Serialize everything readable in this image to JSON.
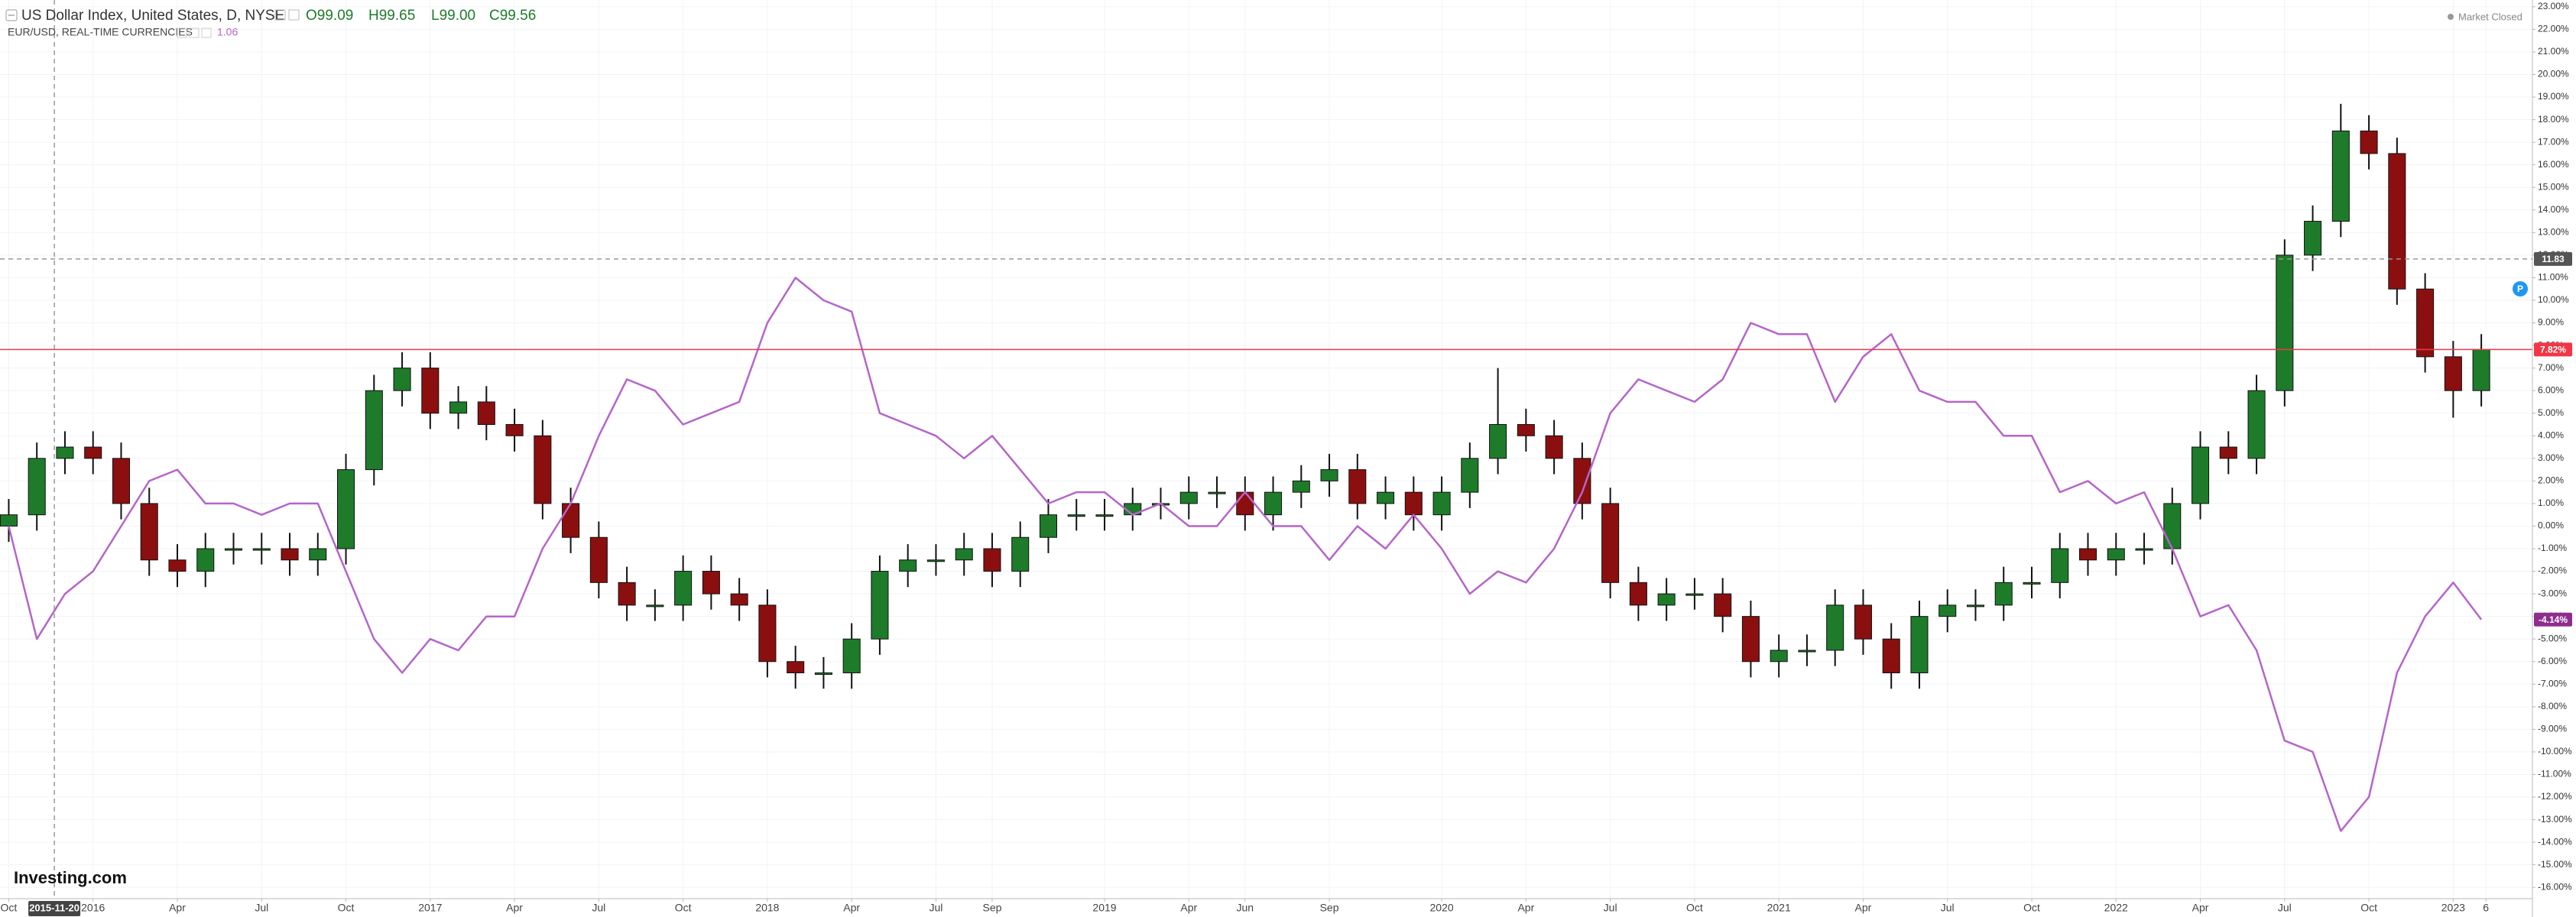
{
  "header": {
    "series_name": "US Dollar Index, United States, D, NYSE",
    "open": "O99.09",
    "high": "H99.65",
    "low": "L99.00",
    "close": "C99.56",
    "eur_value": "1.06",
    "market_status": "Market Closed",
    "logo": "Investing.com"
  },
  "chart_data": {
    "type": "candlestick",
    "x": [
      "2015-10",
      "2015-11",
      "2015-12",
      "2016-01",
      "2016-02",
      "2016-03",
      "2016-04",
      "2016-05",
      "2016-06",
      "2016-07",
      "2016-08",
      "2016-09",
      "2016-10",
      "2016-11",
      "2016-12",
      "2017-01",
      "2017-02",
      "2017-03",
      "2017-04",
      "2017-05",
      "2017-06",
      "2017-07",
      "2017-08",
      "2017-09",
      "2017-10",
      "2017-11",
      "2017-12",
      "2018-01",
      "2018-02",
      "2018-03",
      "2018-04",
      "2018-05",
      "2018-06",
      "2018-07",
      "2018-08",
      "2018-09",
      "2018-10",
      "2018-11",
      "2018-12",
      "2019-01",
      "2019-02",
      "2019-03",
      "2019-04",
      "2019-05",
      "2019-06",
      "2019-07",
      "2019-08",
      "2019-09",
      "2019-10",
      "2019-11",
      "2019-12",
      "2020-01",
      "2020-02",
      "2020-03",
      "2020-04",
      "2020-05",
      "2020-06",
      "2020-07",
      "2020-08",
      "2020-09",
      "2020-10",
      "2020-11",
      "2020-12",
      "2021-01",
      "2021-02",
      "2021-03",
      "2021-04",
      "2021-05",
      "2021-06",
      "2021-07",
      "2021-08",
      "2021-09",
      "2021-10",
      "2021-11",
      "2021-12",
      "2022-01",
      "2022-02",
      "2022-03",
      "2022-04",
      "2022-05",
      "2022-06",
      "2022-07",
      "2022-08",
      "2022-09",
      "2022-10",
      "2022-11",
      "2022-12",
      "2023-01",
      "2023-02"
    ],
    "series": [
      {
        "name": "US Dollar Index, United States, D, NYSE",
        "type": "candlestick",
        "up_color": "#1e7b2a",
        "down_color": "#8b0f0f",
        "open": [
          0,
          0.5,
          3,
          3.5,
          3,
          1,
          -1.5,
          -2,
          -1,
          -1,
          -1,
          -1.5,
          -1,
          2.5,
          6,
          7,
          5,
          5.5,
          4.5,
          4,
          1,
          -0.5,
          -2.5,
          -3.5,
          -3.5,
          -2,
          -3,
          -3.5,
          -6,
          -6.5,
          -6.5,
          -5,
          -2,
          -1.5,
          -1.5,
          -1,
          -2,
          -0.5,
          0.5,
          0.5,
          0.5,
          1,
          1,
          1.5,
          1.5,
          0.5,
          1.5,
          2,
          2.5,
          1,
          1.5,
          0.5,
          1.5,
          3,
          4.5,
          4,
          3,
          1,
          -2.5,
          -3.5,
          -3,
          -3,
          -4,
          -6,
          -5.5,
          -5.5,
          -3.5,
          -5,
          -6.5,
          -4,
          -3.5,
          -3.5,
          -2.5,
          -2.5,
          -1,
          -1.5,
          -1,
          -1,
          1,
          3.5,
          3,
          6,
          12,
          13.5,
          17.5,
          16.5,
          10.5,
          7.5,
          6
        ],
        "high": [
          1.2,
          3.7,
          4.2,
          4.2,
          3.7,
          1.7,
          -0.8,
          -0.3,
          -0.3,
          -0.3,
          -0.3,
          -0.3,
          3.2,
          6.7,
          7.7,
          7.7,
          6.2,
          6.2,
          5.2,
          4.7,
          1.7,
          0.2,
          -1.8,
          -2.8,
          -1.3,
          -1.3,
          -2.3,
          -2.8,
          -5.3,
          -5.8,
          -4.3,
          -1.3,
          -0.8,
          -0.8,
          -0.3,
          -0.3,
          0.2,
          1.2,
          1.2,
          1.2,
          1.7,
          1.7,
          2.2,
          2.2,
          2.2,
          2.2,
          2.7,
          3.2,
          3.2,
          2.2,
          2.2,
          2.2,
          3.7,
          7.0,
          5.2,
          4.7,
          3.7,
          1.7,
          -1.8,
          -2.3,
          -2.3,
          -2.3,
          -3.3,
          -4.8,
          -4.8,
          -2.8,
          -2.8,
          -4.3,
          -3.3,
          -2.8,
          -2.8,
          -1.8,
          -1.8,
          -0.3,
          -0.3,
          -0.3,
          -0.3,
          1.7,
          4.2,
          4.2,
          6.7,
          12.7,
          14.2,
          18.7,
          18.2,
          17.2,
          11.2,
          8.2,
          8.5
        ],
        "low": [
          -0.7,
          -0.2,
          2.3,
          2.3,
          0.3,
          -2.2,
          -2.7,
          -2.7,
          -1.7,
          -1.7,
          -2.2,
          -2.2,
          -1.7,
          1.8,
          5.3,
          4.3,
          4.3,
          3.8,
          3.3,
          0.3,
          -1.2,
          -3.2,
          -4.2,
          -4.2,
          -4.2,
          -3.7,
          -4.2,
          -6.7,
          -7.2,
          -7.2,
          -7.2,
          -5.7,
          -2.7,
          -2.2,
          -2.2,
          -2.7,
          -2.7,
          -1.2,
          -0.2,
          -0.2,
          -0.2,
          0.3,
          0.3,
          0.8,
          -0.2,
          -0.2,
          0.8,
          1.3,
          0.3,
          0.3,
          -0.2,
          -0.2,
          0.8,
          2.3,
          3.3,
          2.3,
          0.3,
          -3.2,
          -4.2,
          -4.2,
          -3.7,
          -4.7,
          -6.7,
          -6.7,
          -6.2,
          -6.2,
          -5.7,
          -7.2,
          -7.2,
          -4.7,
          -4.2,
          -4.2,
          -3.2,
          -3.2,
          -2.2,
          -2.2,
          -1.7,
          -1.7,
          0.3,
          2.3,
          2.3,
          5.3,
          11.3,
          12.8,
          15.8,
          9.8,
          6.8,
          4.8,
          5.3
        ],
        "close": [
          0.5,
          3,
          3.5,
          3,
          1,
          -1.5,
          -2,
          -1,
          -1,
          -1,
          -1.5,
          -1,
          2.5,
          6,
          7,
          5,
          5.5,
          4.5,
          4,
          1,
          -0.5,
          -2.5,
          -3.5,
          -3.5,
          -2,
          -3,
          -3.5,
          -6,
          -6.5,
          -6.5,
          -5,
          -2,
          -1.5,
          -1.5,
          -1,
          -2,
          -0.5,
          0.5,
          0.5,
          0.5,
          1,
          1,
          1.5,
          1.5,
          0.5,
          1.5,
          2,
          2.5,
          1,
          1.5,
          0.5,
          1.5,
          3,
          4.5,
          4,
          3,
          1,
          -2.5,
          -3.5,
          -3,
          -3,
          -4,
          -6,
          -5.5,
          -5.5,
          -3.5,
          -5,
          -6.5,
          -4,
          -3.5,
          -3.5,
          -2.5,
          -2.5,
          -1,
          -1.5,
          -1,
          -1,
          1,
          3.5,
          3,
          6,
          12,
          13.5,
          17.5,
          16.5,
          10.5,
          7.5,
          6,
          7.82
        ]
      },
      {
        "name": "EUR/USD, REAL-TIME CURRENCIES",
        "type": "line",
        "color": "#b565c9",
        "values": [
          0,
          -5,
          -3,
          -2,
          0,
          2,
          2.5,
          1,
          1,
          0.5,
          1,
          1,
          -2,
          -5,
          -6.5,
          -5,
          -5.5,
          -4,
          -4,
          -1,
          1,
          4,
          6.5,
          6,
          4.5,
          5,
          5.5,
          9,
          11,
          10,
          9.5,
          5,
          4.5,
          4,
          3,
          4,
          2.5,
          1,
          1.5,
          1.5,
          0.5,
          1,
          0,
          0,
          1.5,
          0,
          0,
          -1.5,
          0,
          -1,
          0.5,
          -1,
          -3,
          -2,
          -2.5,
          -1,
          1.5,
          5,
          6.5,
          6,
          5.5,
          6.5,
          9,
          8.5,
          8.5,
          5.5,
          7.5,
          8.5,
          6,
          5.5,
          5.5,
          4,
          4,
          1.5,
          2,
          1,
          1.5,
          -1,
          -4,
          -3.5,
          -5.5,
          -9.5,
          -10,
          -13.5,
          -12,
          -6.5,
          -4,
          -2.5,
          -4.14
        ]
      }
    ],
    "xlim": [
      "2015-09-22",
      "2023-03-26"
    ],
    "xticks": [
      {
        "value": "2015-10",
        "label": "Oct"
      },
      {
        "value": "2016-01",
        "label": "2016"
      },
      {
        "value": "2016-04",
        "label": "Apr"
      },
      {
        "value": "2016-07",
        "label": "Jul"
      },
      {
        "value": "2016-10",
        "label": "Oct"
      },
      {
        "value": "2017-01",
        "label": "2017"
      },
      {
        "value": "2017-04",
        "label": "Apr"
      },
      {
        "value": "2017-07",
        "label": "Jul"
      },
      {
        "value": "2017-10",
        "label": "Oct"
      },
      {
        "value": "2018-01",
        "label": "2018"
      },
      {
        "value": "2018-04",
        "label": "Apr"
      },
      {
        "value": "2018-07",
        "label": "Jul"
      },
      {
        "value": "2018-09",
        "label": "Sep"
      },
      {
        "value": "2019-01",
        "label": "2019"
      },
      {
        "value": "2019-04",
        "label": "Apr"
      },
      {
        "value": "2019-06",
        "label": "Jun"
      },
      {
        "value": "2019-09",
        "label": "Sep"
      },
      {
        "value": "2020-01",
        "label": "2020"
      },
      {
        "value": "2020-04",
        "label": "Apr"
      },
      {
        "value": "2020-07",
        "label": "Jul"
      },
      {
        "value": "2020-10",
        "label": "Oct"
      },
      {
        "value": "2021-01",
        "label": "2021"
      },
      {
        "value": "2021-04",
        "label": "Apr"
      },
      {
        "value": "2021-07",
        "label": "Jul"
      },
      {
        "value": "2021-10",
        "label": "Oct"
      },
      {
        "value": "2022-01",
        "label": "2022"
      },
      {
        "value": "2022-04",
        "label": "Apr"
      },
      {
        "value": "2022-07",
        "label": "Jul"
      },
      {
        "value": "2022-10",
        "label": "Oct"
      },
      {
        "value": "2023-01",
        "label": "2023"
      },
      {
        "value": "2023-02-06",
        "label": "6"
      }
    ],
    "ylim": [
      -16.5,
      23.3
    ],
    "yticks": [
      {
        "value": 23,
        "label": "23.00%"
      },
      {
        "value": 22,
        "label": "22.00%"
      },
      {
        "value": 21,
        "label": "21.00%"
      },
      {
        "value": 20,
        "label": "20.00%"
      },
      {
        "value": 19,
        "label": "19.00%"
      },
      {
        "value": 18,
        "label": "18.00%"
      },
      {
        "value": 17,
        "label": "17.00%"
      },
      {
        "value": 16,
        "label": "16.00%"
      },
      {
        "value": 15,
        "label": "15.00%"
      },
      {
        "value": 14,
        "label": "14.00%"
      },
      {
        "value": 13,
        "label": "13.00%"
      },
      {
        "value": 12,
        "label": "12.00%"
      },
      {
        "value": 11,
        "label": "11.00%"
      },
      {
        "value": 10,
        "label": "10.00%"
      },
      {
        "value": 9,
        "label": "9.00%"
      },
      {
        "value": 8,
        "label": "8.00%"
      },
      {
        "value": 7,
        "label": "7.00%"
      },
      {
        "value": 6,
        "label": "6.00%"
      },
      {
        "value": 5,
        "label": "5.00%"
      },
      {
        "value": 4,
        "label": "4.00%"
      },
      {
        "value": 3,
        "label": "3.00%"
      },
      {
        "value": 2,
        "label": "2.00%"
      },
      {
        "value": 1,
        "label": "1.00%"
      },
      {
        "value": 0,
        "label": "0.00%"
      },
      {
        "value": -1,
        "label": "-1.00%"
      },
      {
        "value": -2,
        "label": "-2.00%"
      },
      {
        "value": -3,
        "label": "-3.00%"
      },
      {
        "value": -4,
        "label": "-4.00%"
      },
      {
        "value": -5,
        "label": "-5.00%"
      },
      {
        "value": -6,
        "label": "-6.00%"
      },
      {
        "value": -7,
        "label": "-7.00%"
      },
      {
        "value": -8,
        "label": "-8.00%"
      },
      {
        "value": -9,
        "label": "-9.00%"
      },
      {
        "value": -10,
        "label": "-10.00%"
      },
      {
        "value": -11,
        "label": "-11.00%"
      },
      {
        "value": -12,
        "label": "-12.00%"
      },
      {
        "value": -13,
        "label": "-13.00%"
      },
      {
        "value": -14,
        "label": "-14.00%"
      },
      {
        "value": -15,
        "label": "-15.00%"
      },
      {
        "value": -16,
        "label": "-16.00%"
      }
    ],
    "grid": true,
    "price_labels": [
      {
        "value": 11.83,
        "label": "11.83",
        "color": "#555555",
        "line": "dashed"
      },
      {
        "value": 7.82,
        "label": "7.82%",
        "color": "#f23645",
        "line": "solid"
      },
      {
        "value": -4.14,
        "label": "-4.14%",
        "color": "#8e2d8e",
        "line": "none"
      }
    ],
    "crosshair": {
      "x": "2015-11-20",
      "label": "2015-11-20"
    }
  }
}
